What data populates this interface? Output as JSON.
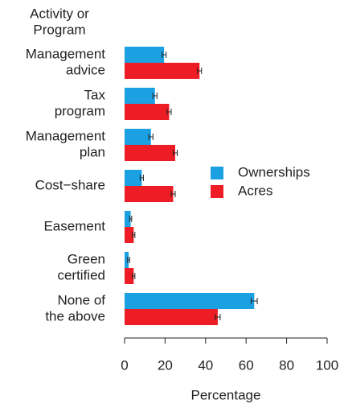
{
  "chart_data": {
    "type": "bar",
    "orientation": "horizontal",
    "y_label": [
      "Activity or",
      "Program"
    ],
    "x_label": "Percentage",
    "categories": [
      [
        "Management",
        "advice"
      ],
      [
        "Tax",
        "program"
      ],
      [
        "Management",
        "plan"
      ],
      [
        "Cost−share"
      ],
      [
        "Easement"
      ],
      [
        "Green",
        "certified"
      ],
      [
        "None of",
        "the above"
      ]
    ],
    "series": [
      {
        "name": "Ownerships",
        "color": "#1ba1e2",
        "values": [
          19.5,
          15,
          13,
          8.5,
          3,
          2,
          64
        ],
        "errors": [
          1,
          1,
          1,
          0.8,
          0.5,
          0.5,
          1.5
        ]
      },
      {
        "name": "Acres",
        "color": "#ee1c25",
        "values": [
          37,
          22,
          25,
          24,
          4.5,
          4.5,
          46
        ],
        "errors": [
          1,
          1,
          1,
          1,
          0.6,
          0.6,
          1.2
        ]
      }
    ],
    "xlim": [
      0,
      100
    ],
    "xticks": [
      0,
      20,
      40,
      60,
      80,
      100
    ],
    "legend": "right"
  }
}
